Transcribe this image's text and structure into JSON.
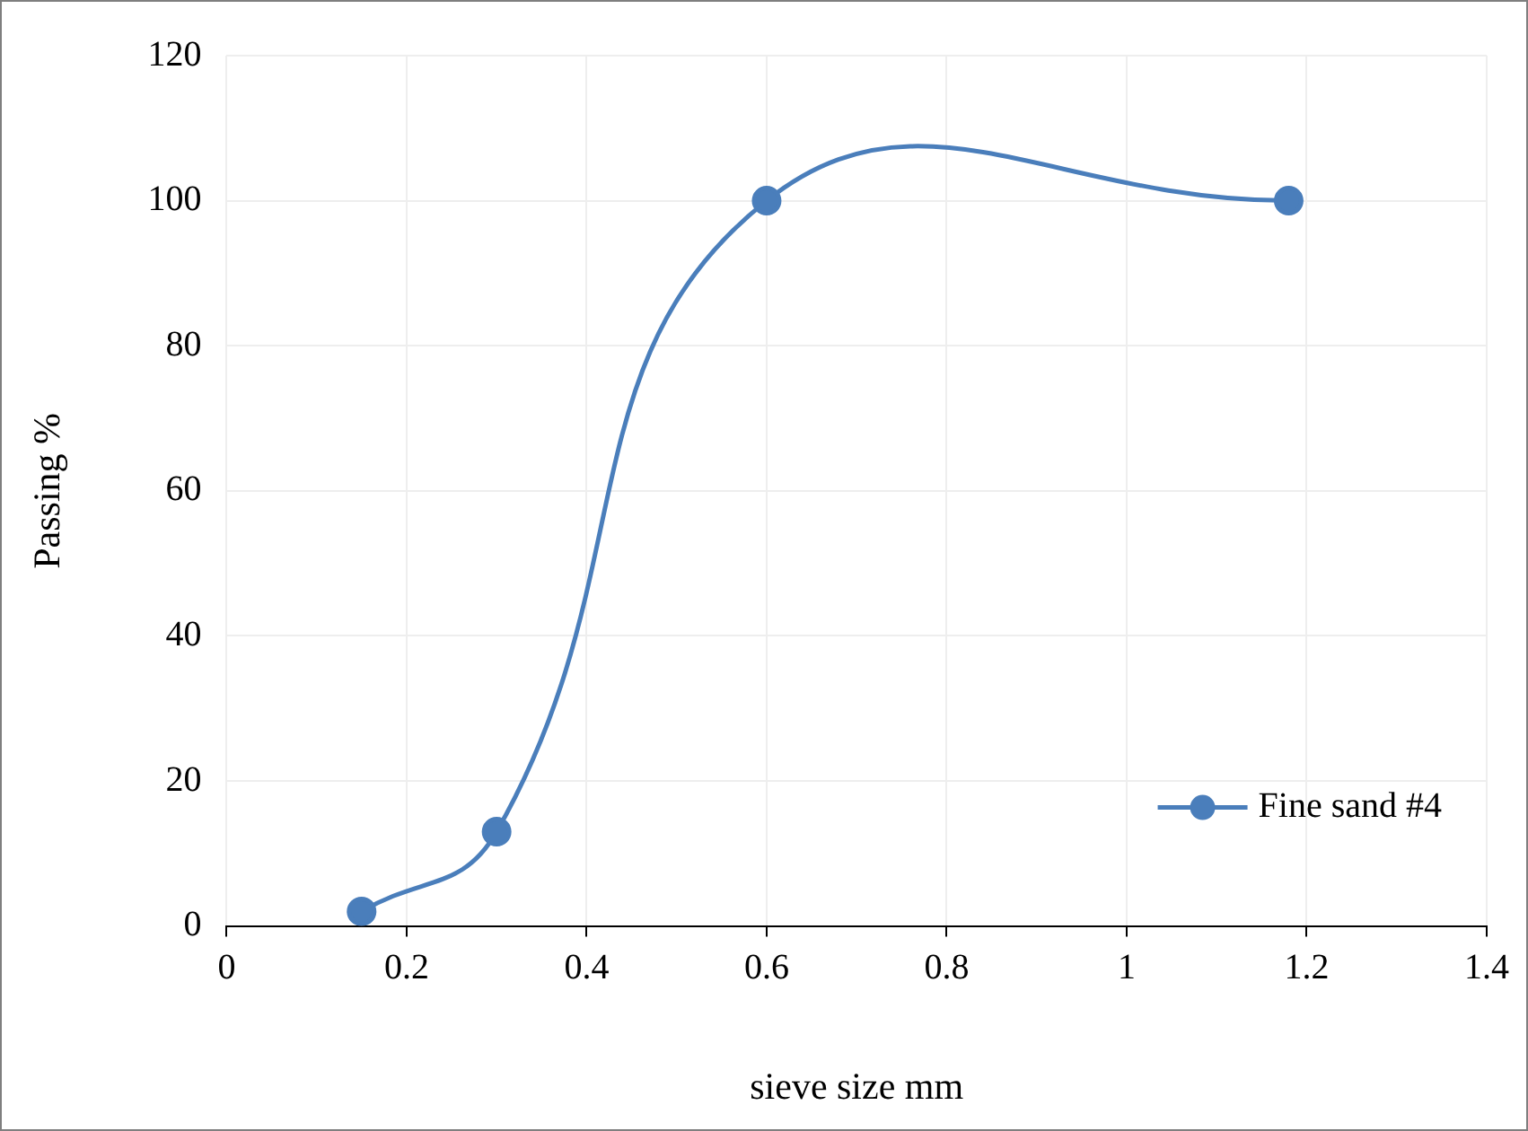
{
  "chart_data": {
    "type": "line",
    "xlabel": "sieve size mm",
    "ylabel": "Passing %",
    "x": [
      0.15,
      0.3,
      0.6,
      1.18
    ],
    "series": [
      {
        "name": "Fine sand #4",
        "color": "#4a7ebb",
        "values": [
          2,
          13,
          100,
          100
        ]
      }
    ],
    "xlim": [
      0,
      1.4
    ],
    "xticks": [
      0,
      0.2,
      0.4,
      0.6,
      0.8,
      1,
      1.2,
      1.4
    ],
    "ylim": [
      0,
      120
    ],
    "yticks": [
      0,
      20,
      40,
      60,
      80,
      100,
      120
    ],
    "grid": true,
    "legend": "bottom right",
    "marker": "circle",
    "line_style": "solid"
  }
}
